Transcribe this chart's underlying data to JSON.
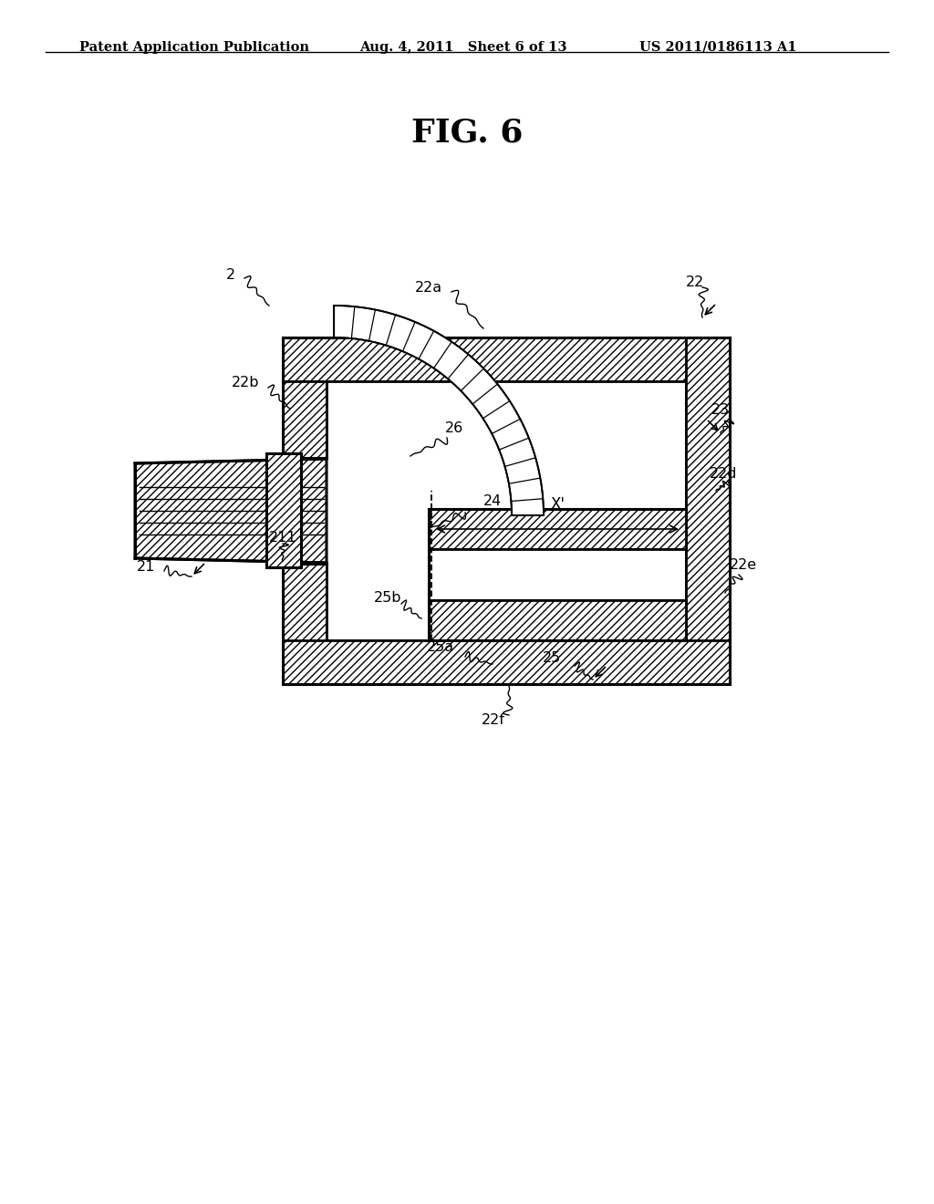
{
  "bg_color": "#ffffff",
  "line_color": "#000000",
  "title": "FIG. 6",
  "header_left": "Patent Application Publication",
  "header_center": "Aug. 4, 2011   Sheet 6 of 13",
  "header_right": "US 2011/0186113 A1",
  "title_fontsize": 26,
  "header_fontsize": 10.5,
  "label_fontsize": 11.5
}
